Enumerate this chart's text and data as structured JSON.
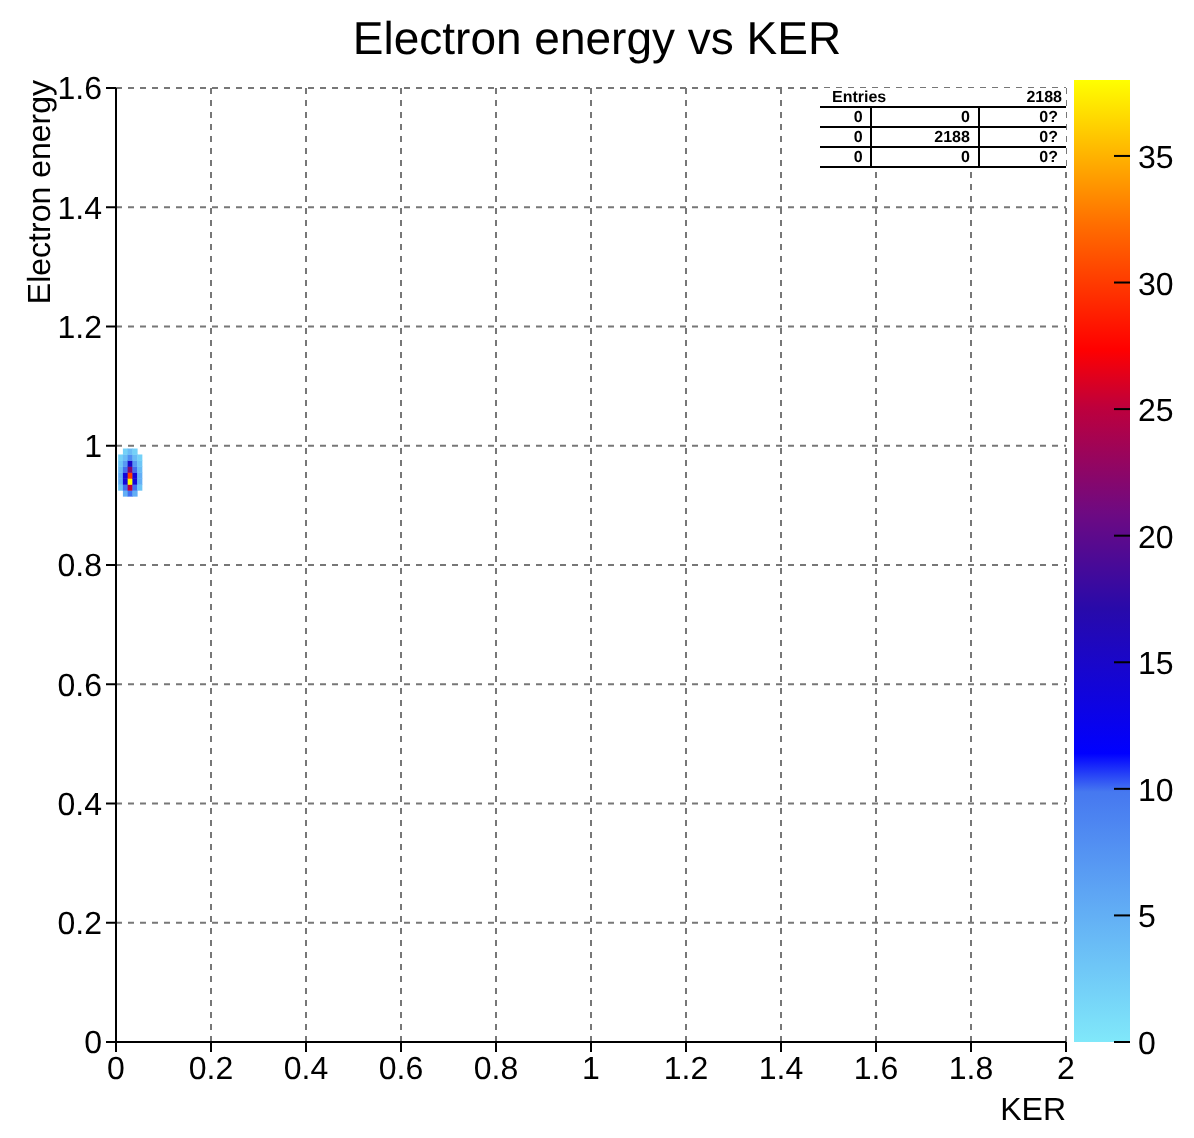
{
  "chart_data": {
    "type": "scatter",
    "title": "Electron energy vs KER",
    "xlabel": "KER",
    "ylabel": "Electron energy",
    "marker": "square",
    "grid": true,
    "xlim": [
      0,
      2
    ],
    "xticks": [
      0,
      0.2,
      0.4,
      0.6,
      0.8,
      1,
      1.2,
      1.4,
      1.6,
      1.8,
      2
    ],
    "ylim": [
      0,
      1.6
    ],
    "yticks": [
      0,
      0.2,
      0.4,
      0.6,
      0.8,
      1,
      1.2,
      1.4,
      1.6
    ],
    "clim": [
      0,
      38
    ],
    "cticks": [
      0,
      5,
      10,
      15,
      20,
      25,
      30,
      35
    ],
    "x": [
      0.01,
      0.01,
      0.01,
      0.01,
      0.01,
      0.01,
      0.02,
      0.02,
      0.02,
      0.02,
      0.02,
      0.02,
      0.02,
      0.02,
      0.03,
      0.03,
      0.03,
      0.03,
      0.03,
      0.03,
      0.03,
      0.03,
      0.04,
      0.04,
      0.04,
      0.04,
      0.04,
      0.04,
      0.04,
      0.04,
      0.05,
      0.05,
      0.05,
      0.05,
      0.05,
      0.05
    ],
    "values": [
      0.93,
      0.94,
      0.95,
      0.96,
      0.97,
      0.98,
      0.92,
      0.93,
      0.94,
      0.95,
      0.96,
      0.97,
      0.98,
      0.99,
      0.92,
      0.93,
      0.94,
      0.95,
      0.96,
      0.97,
      0.98,
      0.99,
      0.92,
      0.93,
      0.94,
      0.95,
      0.96,
      0.97,
      0.98,
      0.99,
      0.93,
      0.94,
      0.95,
      0.96,
      0.97,
      0.98
    ],
    "cvalues": [
      3,
      5,
      5,
      4,
      3,
      2,
      5,
      10,
      14,
      14,
      10,
      7,
      4,
      2,
      10,
      25,
      38,
      30,
      22,
      15,
      8,
      4,
      5,
      10,
      14,
      14,
      10,
      7,
      4,
      2,
      3,
      5,
      5,
      4,
      3,
      2
    ],
    "annotations": [
      "Entries",
      "2188",
      "0",
      "0",
      "0?",
      "0",
      "2188",
      "0?",
      "0",
      "0",
      "0?"
    ]
  }
}
